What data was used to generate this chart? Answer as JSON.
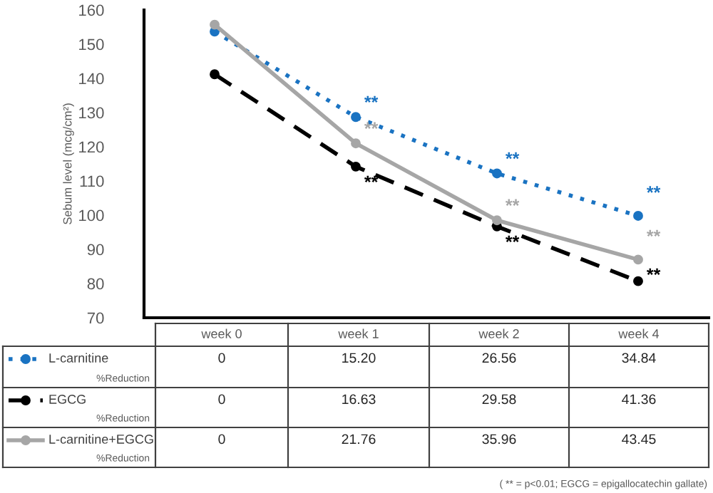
{
  "chart_data": {
    "type": "line",
    "ylabel": "Sebum level (mcg/cm²)",
    "categories": [
      "week 0",
      "week 1",
      "week 2",
      "week 4"
    ],
    "ylim": [
      70,
      160
    ],
    "yticks": [
      70,
      80,
      90,
      100,
      110,
      120,
      130,
      140,
      150,
      160
    ],
    "grid": false,
    "legend": "bottom",
    "marker": "circle",
    "series": [
      {
        "name": "L-carnitine",
        "color": "#1a73c2",
        "line_style": "dotted",
        "values": [
          153.7,
          128.7,
          112.2,
          99.8
        ]
      },
      {
        "name": "EGCG",
        "color": "#000000",
        "line_style": "dashed",
        "values": [
          141.2,
          114.2,
          96.7,
          80.7
        ]
      },
      {
        "name": "L-carnitine+EGCG",
        "color": "#a6a6a6",
        "line_style": "solid",
        "values": [
          155.7,
          121.0,
          98.5,
          87.0
        ]
      }
    ],
    "annotations": [
      {
        "text": "**",
        "x": "week 1",
        "y": 128.7
      },
      {
        "text": "**",
        "x": "week 2",
        "y": 112.2
      },
      {
        "text": "**",
        "x": "week 4",
        "y": 99.8
      },
      {
        "text": "**",
        "x": "week 1",
        "y": 114.2
      },
      {
        "text": "**",
        "x": "week 2",
        "y": 96.7
      },
      {
        "text": "**",
        "x": "week 4",
        "y": 80.7
      },
      {
        "text": "**",
        "x": "week 1",
        "y": 121.0
      },
      {
        "text": "**",
        "x": "week 2",
        "y": 98.5
      },
      {
        "text": "**",
        "x": "week 4",
        "y": 87.0
      },
      "%Reduction",
      "0",
      "15.20",
      "26.56",
      "34.84",
      "%Reduction",
      "0",
      "16.63",
      "29.58",
      "41.36",
      "%Reduction",
      "0",
      "21.76",
      "35.96",
      "43.45",
      "( ** = p<0.01; EGCG = epigallocatechin gallate)"
    ]
  }
}
